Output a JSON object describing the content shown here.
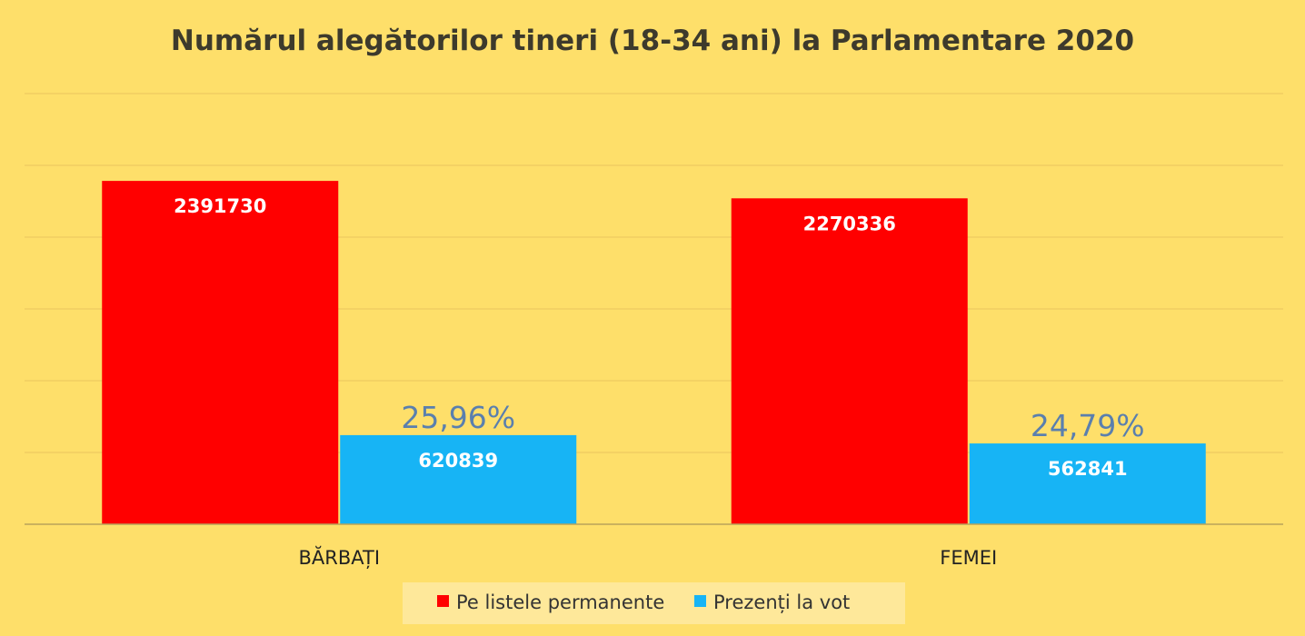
{
  "chart_data": {
    "type": "bar",
    "title": "Numărul alegătorilor tineri (18-34 ani) la Parlamentare 2020",
    "categories": [
      "BĂRBAȚI",
      "FEMEI"
    ],
    "series": [
      {
        "name": "Pe listele permanente",
        "color": "#ff0000",
        "values": [
          2391730,
          2270336
        ],
        "labels": [
          "2391730",
          "2270336"
        ]
      },
      {
        "name": "Prezenți la vot",
        "color": "#17b4f5",
        "values": [
          620839,
          562841
        ],
        "labels": [
          "620839",
          "562841"
        ],
        "annotations": [
          "25,96%",
          "24,79%"
        ]
      }
    ],
    "ylim": [
      0,
      3000000
    ],
    "ytick_step": 500000,
    "grid": true,
    "legend": "bottom",
    "xlabel": "",
    "ylabel": ""
  }
}
